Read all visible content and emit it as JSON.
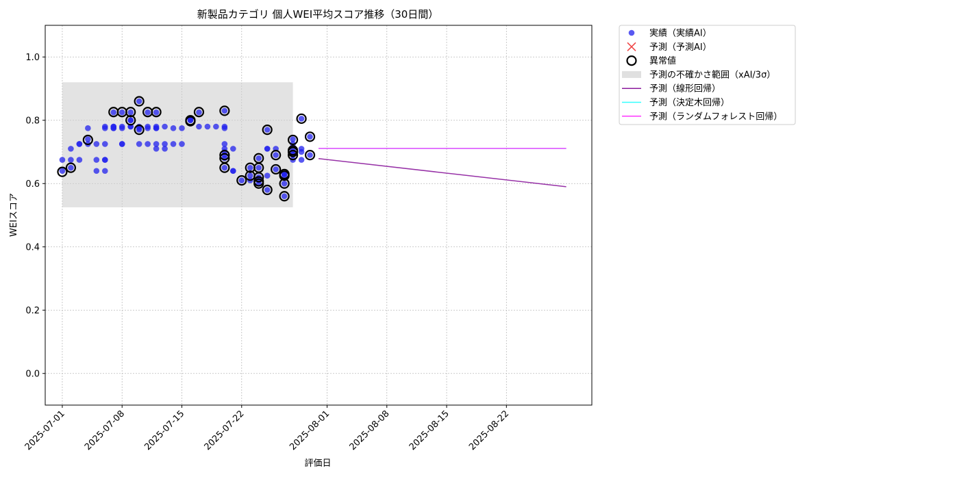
{
  "chart_data": {
    "type": "scatter",
    "title": "新製品カテゴリ 個人WEI平均スコア推移（30日間）",
    "xlabel": "評価日",
    "ylabel": "WEIスコア",
    "xlim": [
      "2025-06-29",
      "2025-09-01"
    ],
    "ylim": [
      -0.1,
      1.1
    ],
    "xticks": [
      "2025-07-01",
      "2025-07-08",
      "2025-07-15",
      "2025-07-22",
      "2025-08-01",
      "2025-08-08",
      "2025-08-15",
      "2025-08-22"
    ],
    "yticks": [
      0.0,
      0.2,
      0.4,
      0.6,
      0.8,
      1.0
    ],
    "ytick_labels": [
      "0.0",
      "0.2",
      "0.4",
      "0.6",
      "0.8",
      "1.0"
    ],
    "grid": true,
    "legend_position": "outside-top-right",
    "uncertainty_band": {
      "name": "予測の不確かさ範囲（xAI/3σ）",
      "x_start": "2025-07-01",
      "x_end": "2025-07-28",
      "y_low": 0.525,
      "y_high": 0.92,
      "color": "#cccccc"
    },
    "series": [
      {
        "name": "実績（実績AI）",
        "kind": "scatter",
        "color": "#2222ee",
        "points": [
          [
            "2025-07-01",
            0.675
          ],
          [
            "2025-07-01",
            0.64
          ],
          [
            "2025-07-02",
            0.71
          ],
          [
            "2025-07-02",
            0.675
          ],
          [
            "2025-07-02",
            0.65
          ],
          [
            "2025-07-03",
            0.725
          ],
          [
            "2025-07-03",
            0.725
          ],
          [
            "2025-07-03",
            0.675
          ],
          [
            "2025-07-04",
            0.725
          ],
          [
            "2025-07-04",
            0.775
          ],
          [
            "2025-07-04",
            0.74
          ],
          [
            "2025-07-05",
            0.675
          ],
          [
            "2025-07-05",
            0.64
          ],
          [
            "2025-07-05",
            0.725
          ],
          [
            "2025-07-06",
            0.675
          ],
          [
            "2025-07-06",
            0.64
          ],
          [
            "2025-07-06",
            0.675
          ],
          [
            "2025-07-06",
            0.78
          ],
          [
            "2025-07-06",
            0.775
          ],
          [
            "2025-07-06",
            0.725
          ],
          [
            "2025-07-07",
            0.78
          ],
          [
            "2025-07-07",
            0.775
          ],
          [
            "2025-07-07",
            0.825
          ],
          [
            "2025-07-07",
            0.78
          ],
          [
            "2025-07-07",
            0.775
          ],
          [
            "2025-07-08",
            0.725
          ],
          [
            "2025-07-08",
            0.725
          ],
          [
            "2025-07-08",
            0.78
          ],
          [
            "2025-07-08",
            0.775
          ],
          [
            "2025-07-08",
            0.825
          ],
          [
            "2025-07-09",
            0.78
          ],
          [
            "2025-07-09",
            0.825
          ],
          [
            "2025-07-09",
            0.8
          ],
          [
            "2025-07-09",
            0.8
          ],
          [
            "2025-07-09",
            0.78
          ],
          [
            "2025-07-10",
            0.725
          ],
          [
            "2025-07-10",
            0.775
          ],
          [
            "2025-07-10",
            0.77
          ],
          [
            "2025-07-10",
            0.86
          ],
          [
            "2025-07-10",
            0.78
          ],
          [
            "2025-07-11",
            0.78
          ],
          [
            "2025-07-11",
            0.825
          ],
          [
            "2025-07-11",
            0.775
          ],
          [
            "2025-07-11",
            0.725
          ],
          [
            "2025-07-12",
            0.71
          ],
          [
            "2025-07-12",
            0.725
          ],
          [
            "2025-07-12",
            0.78
          ],
          [
            "2025-07-12",
            0.775
          ],
          [
            "2025-07-12",
            0.775
          ],
          [
            "2025-07-12",
            0.825
          ],
          [
            "2025-07-13",
            0.78
          ],
          [
            "2025-07-13",
            0.725
          ],
          [
            "2025-07-13",
            0.71
          ],
          [
            "2025-07-14",
            0.775
          ],
          [
            "2025-07-14",
            0.725
          ],
          [
            "2025-07-15",
            0.775
          ],
          [
            "2025-07-15",
            0.725
          ],
          [
            "2025-07-16",
            0.8
          ],
          [
            "2025-07-16",
            0.805
          ],
          [
            "2025-07-16",
            0.8
          ],
          [
            "2025-07-17",
            0.78
          ],
          [
            "2025-07-17",
            0.825
          ],
          [
            "2025-07-18",
            0.78
          ],
          [
            "2025-07-19",
            0.78
          ],
          [
            "2025-07-20",
            0.78
          ],
          [
            "2025-07-20",
            0.775
          ],
          [
            "2025-07-20",
            0.83
          ],
          [
            "2025-07-20",
            0.725
          ],
          [
            "2025-07-20",
            0.71
          ],
          [
            "2025-07-20",
            0.69
          ],
          [
            "2025-07-20",
            0.68
          ],
          [
            "2025-07-20",
            0.65
          ],
          [
            "2025-07-20",
            0.7
          ],
          [
            "2025-07-21",
            0.71
          ],
          [
            "2025-07-21",
            0.64
          ],
          [
            "2025-07-21",
            0.64
          ],
          [
            "2025-07-22",
            0.61
          ],
          [
            "2025-07-23",
            0.61
          ],
          [
            "2025-07-23",
            0.65
          ],
          [
            "2025-07-23",
            0.625
          ],
          [
            "2025-07-24",
            0.65
          ],
          [
            "2025-07-24",
            0.6
          ],
          [
            "2025-07-24",
            0.68
          ],
          [
            "2025-07-24",
            0.62
          ],
          [
            "2025-07-24",
            0.61
          ],
          [
            "2025-07-25",
            0.625
          ],
          [
            "2025-07-25",
            0.58
          ],
          [
            "2025-07-25",
            0.71
          ],
          [
            "2025-07-25",
            0.77
          ],
          [
            "2025-07-25",
            0.71
          ],
          [
            "2025-07-26",
            0.69
          ],
          [
            "2025-07-26",
            0.645
          ],
          [
            "2025-07-26",
            0.71
          ],
          [
            "2025-07-27",
            0.625
          ],
          [
            "2025-07-27",
            0.6
          ],
          [
            "2025-07-27",
            0.56
          ],
          [
            "2025-07-27",
            0.63
          ],
          [
            "2025-07-27",
            0.63
          ],
          [
            "2025-07-28",
            0.74
          ],
          [
            "2025-07-28",
            0.7
          ],
          [
            "2025-07-28",
            0.675
          ],
          [
            "2025-07-28",
            0.69
          ],
          [
            "2025-07-28",
            0.705
          ],
          [
            "2025-07-28",
            0.725
          ],
          [
            "2025-07-29",
            0.675
          ],
          [
            "2025-07-29",
            0.7
          ],
          [
            "2025-07-29",
            0.805
          ],
          [
            "2025-07-29",
            0.71
          ],
          [
            "2025-07-30",
            0.69
          ],
          [
            "2025-07-30",
            0.748
          ]
        ]
      },
      {
        "name": "予測（予測AI）",
        "kind": "marker-x",
        "color": "#ee3333",
        "points": []
      },
      {
        "name": "異常値",
        "kind": "ring",
        "color": "#000000",
        "points": [
          [
            "2025-07-01",
            0.637
          ],
          [
            "2025-07-02",
            0.65
          ],
          [
            "2025-07-04",
            0.738
          ],
          [
            "2025-07-07",
            0.826
          ],
          [
            "2025-07-08",
            0.826
          ],
          [
            "2025-07-09",
            0.826
          ],
          [
            "2025-07-09",
            0.8
          ],
          [
            "2025-07-10",
            0.77
          ],
          [
            "2025-07-10",
            0.86
          ],
          [
            "2025-07-11",
            0.826
          ],
          [
            "2025-07-12",
            0.826
          ],
          [
            "2025-07-16",
            0.8
          ],
          [
            "2025-07-16",
            0.797
          ],
          [
            "2025-07-17",
            0.826
          ],
          [
            "2025-07-20",
            0.83
          ],
          [
            "2025-07-20",
            0.69
          ],
          [
            "2025-07-20",
            0.68
          ],
          [
            "2025-07-20",
            0.65
          ],
          [
            "2025-07-22",
            0.61
          ],
          [
            "2025-07-23",
            0.65
          ],
          [
            "2025-07-23",
            0.625
          ],
          [
            "2025-07-24",
            0.68
          ],
          [
            "2025-07-24",
            0.65
          ],
          [
            "2025-07-24",
            0.62
          ],
          [
            "2025-07-24",
            0.607
          ],
          [
            "2025-07-24",
            0.6
          ],
          [
            "2025-07-25",
            0.58
          ],
          [
            "2025-07-25",
            0.77
          ],
          [
            "2025-07-26",
            0.69
          ],
          [
            "2025-07-26",
            0.645
          ],
          [
            "2025-07-27",
            0.63
          ],
          [
            "2025-07-27",
            0.625
          ],
          [
            "2025-07-27",
            0.6
          ],
          [
            "2025-07-27",
            0.56
          ],
          [
            "2025-07-28",
            0.738
          ],
          [
            "2025-07-28",
            0.705
          ],
          [
            "2025-07-28",
            0.7
          ],
          [
            "2025-07-28",
            0.69
          ],
          [
            "2025-07-29",
            0.805
          ],
          [
            "2025-07-30",
            0.748
          ],
          [
            "2025-07-30",
            0.69
          ]
        ]
      },
      {
        "name": "予測（線形回帰）",
        "kind": "line",
        "color": "#8b1a9c",
        "points": [
          [
            "2025-07-31",
            0.679
          ],
          [
            "2025-08-29",
            0.59
          ]
        ]
      },
      {
        "name": "予測（決定木回帰）",
        "kind": "line",
        "color": "#33ffff",
        "points": [
          [
            "2025-07-31",
            0.711
          ],
          [
            "2025-08-29",
            0.711
          ]
        ]
      },
      {
        "name": "予測（ランダムフォレスト回帰）",
        "kind": "line",
        "color": "#ff33ff",
        "points": [
          [
            "2025-07-31",
            0.711
          ],
          [
            "2025-08-29",
            0.711
          ]
        ]
      }
    ]
  }
}
